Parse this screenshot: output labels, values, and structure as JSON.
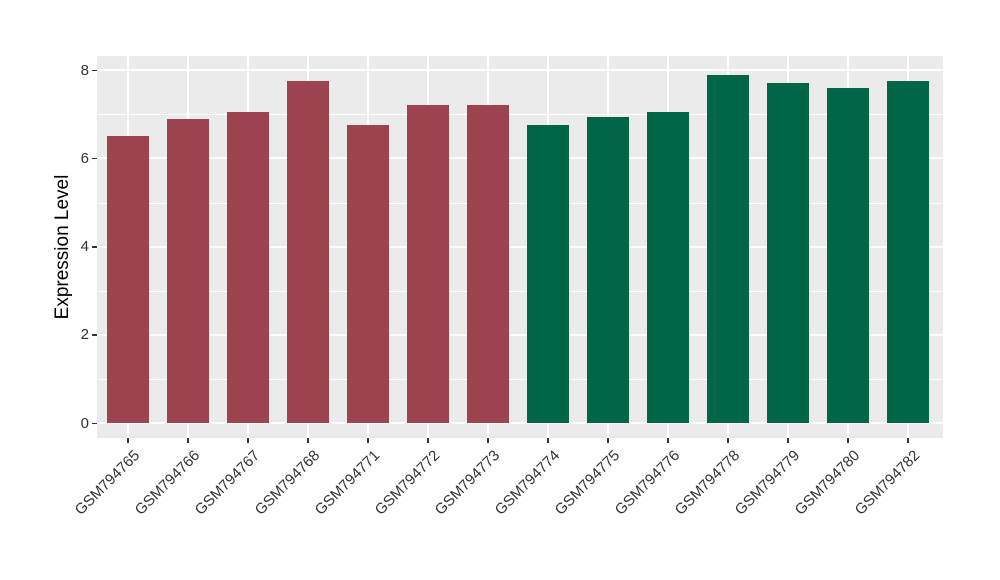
{
  "chart_data": {
    "type": "bar",
    "title": "",
    "xlabel": "",
    "ylabel": "Expression Level",
    "ylim": [
      0,
      8.6
    ],
    "yticks": [
      0,
      2,
      4,
      6,
      8
    ],
    "minor_yticks": [
      1,
      3,
      5,
      7
    ],
    "grid": "on",
    "legend_position": "none",
    "panel_background": "#EBEBEB",
    "grid_color": "#FFFFFF",
    "tick_mark_color": "#333333",
    "tick_label_color": "#333333",
    "axis_title_color": "#000000",
    "categories": [
      "GSM794765",
      "GSM794766",
      "GSM794767",
      "GSM794768",
      "GSM794771",
      "GSM794772",
      "GSM794773",
      "GSM794774",
      "GSM794775",
      "GSM794776",
      "GSM794778",
      "GSM794779",
      "GSM794780",
      "GSM794782"
    ],
    "values": [
      6.5,
      6.9,
      7.05,
      7.75,
      6.75,
      7.2,
      7.2,
      6.75,
      6.95,
      7.05,
      7.9,
      7.7,
      7.6,
      7.75
    ],
    "groups": [
      "A",
      "A",
      "A",
      "A",
      "A",
      "A",
      "A",
      "B",
      "B",
      "B",
      "B",
      "B",
      "B",
      "B"
    ],
    "group_colors": {
      "A": "#9C4350",
      "B": "#006646"
    }
  }
}
